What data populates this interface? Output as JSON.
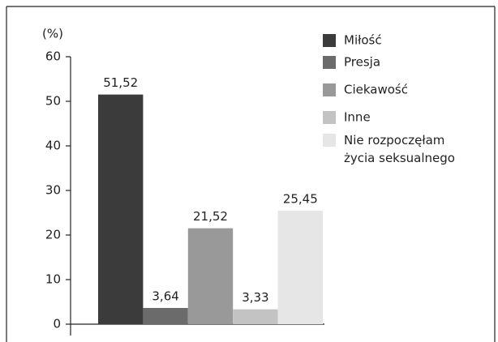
{
  "chart_data": {
    "type": "bar",
    "y_label": "(%)",
    "series": [
      {
        "name": "Miłość",
        "color": "#3b3b3b",
        "values": [
          51.52
        ],
        "value_labels": [
          "51,52"
        ]
      },
      {
        "name": "Presja",
        "color": "#6b6b6b",
        "values": [
          3.64
        ],
        "value_labels": [
          "3,64"
        ]
      },
      {
        "name": "Ciekawość",
        "color": "#999999",
        "values": [
          21.52
        ],
        "value_labels": [
          "21,52"
        ]
      },
      {
        "name": "Inne",
        "color": "#c3c3c3",
        "values": [
          3.33
        ],
        "value_labels": [
          "3,33"
        ]
      },
      {
        "name": "Nie rozpoczęłam\nżycia seksualnego",
        "color": "#e6e6e6",
        "values": [
          25.45
        ],
        "value_labels": [
          "25,45"
        ]
      }
    ],
    "ylim": [
      0,
      60
    ],
    "yticks": [
      0,
      10,
      20,
      30,
      40,
      50,
      60
    ],
    "legend": "right"
  }
}
